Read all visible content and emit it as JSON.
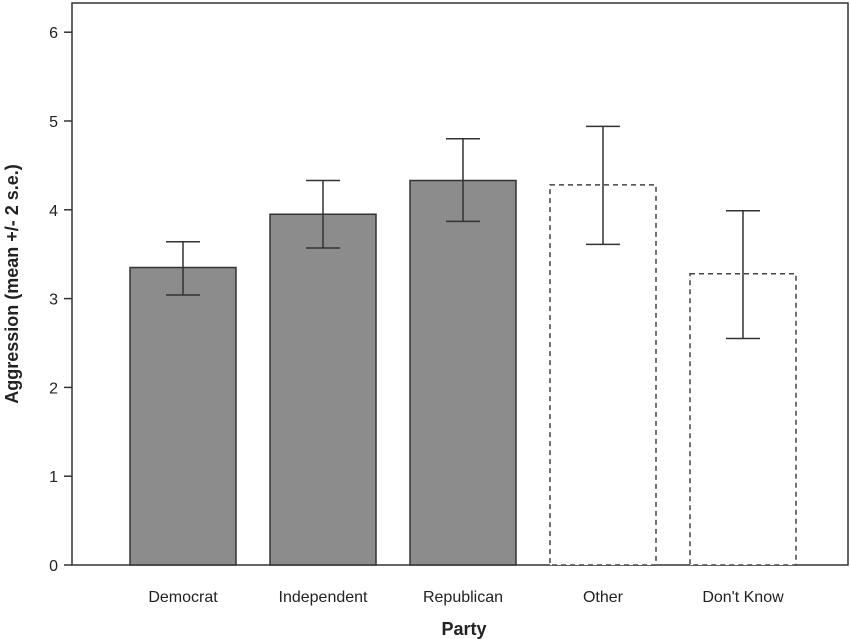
{
  "chart_data": {
    "type": "bar",
    "title": "",
    "xlabel": "Party",
    "ylabel": "Aggression (mean +/- 2 s.e.)",
    "ylim": [
      0,
      6.4
    ],
    "yticks": [
      0,
      1,
      2,
      3,
      4,
      5,
      6
    ],
    "categories": [
      "Democrat",
      "Independent",
      "Republican",
      "Other",
      "Don't Know"
    ],
    "series": [
      {
        "values": [
          3.35,
          3.95,
          4.33,
          4.28,
          3.28
        ],
        "error_low": [
          3.04,
          3.57,
          3.87,
          3.61,
          2.55
        ],
        "error_high": [
          3.64,
          4.33,
          4.8,
          4.94,
          3.99
        ]
      }
    ],
    "bar_styles": [
      "filled",
      "filled",
      "filled",
      "dashed-outline",
      "dashed-outline"
    ],
    "fill_color": "#8c8c8c",
    "grid": false,
    "legend": "none"
  }
}
